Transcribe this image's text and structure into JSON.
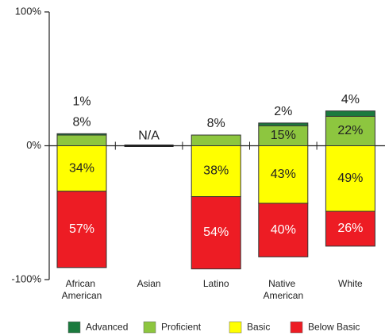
{
  "chart_data": {
    "type": "diverging_bar",
    "categories": [
      "African American",
      "Asian",
      "Latino",
      "Native American",
      "White"
    ],
    "na_label": "N/A",
    "series": [
      {
        "name": "Advanced",
        "color": "#1b7a3e",
        "direction": "up",
        "values": [
          1,
          null,
          0,
          2,
          4
        ],
        "value_labels": [
          "1%",
          null,
          null,
          "2%",
          "4%"
        ]
      },
      {
        "name": "Proficient",
        "color": "#8dc63f",
        "direction": "up",
        "values": [
          8,
          null,
          8,
          15,
          22
        ],
        "value_labels": [
          "8%",
          null,
          "8%",
          "15%",
          "22%"
        ]
      },
      {
        "name": "Basic",
        "color": "#ffff00",
        "direction": "down",
        "values": [
          34,
          null,
          38,
          43,
          49
        ],
        "value_labels": [
          "34%",
          null,
          "38%",
          "43%",
          "49%"
        ]
      },
      {
        "name": "Below Basic",
        "color": "#ed1c24",
        "direction": "down",
        "values": [
          57,
          null,
          54,
          40,
          26
        ],
        "value_labels": [
          "57%",
          null,
          "54%",
          "40%",
          "26%"
        ]
      }
    ],
    "ylim": [
      -100,
      100
    ],
    "yticks": [
      {
        "value": -100,
        "label": "-100%"
      },
      {
        "value": 0,
        "label": "0%"
      },
      {
        "value": 100,
        "label": "100%"
      }
    ],
    "legend": "bottom"
  }
}
